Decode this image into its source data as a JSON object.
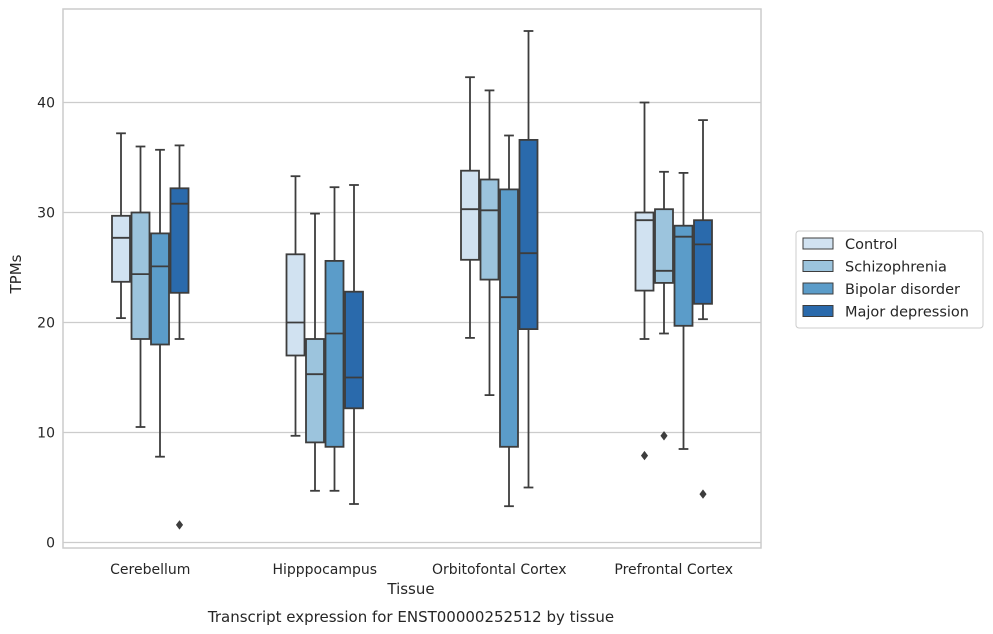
{
  "chart_data": {
    "type": "box",
    "title": "",
    "caption": "Transcript expression for ENST00000252512 by tissue",
    "xlabel": "Tissue",
    "ylabel": "TPMs",
    "ylim": [
      -0.5,
      48.5
    ],
    "yticks": [
      0,
      10,
      20,
      30,
      40
    ],
    "grid": "horizontal",
    "legend_position": "right",
    "categories": [
      "Cerebellum",
      "Hipppocampus",
      "Orbitofontal Cortex",
      "Prefrontal Cortex"
    ],
    "series": [
      {
        "name": "Control",
        "color": "#d1e2f1",
        "boxes": [
          {
            "whisker_low": 20.4,
            "q1": 23.7,
            "median": 27.7,
            "q3": 29.7,
            "whisker_high": 37.2,
            "outliers": []
          },
          {
            "whisker_low": 9.7,
            "q1": 17.0,
            "median": 20.0,
            "q3": 26.2,
            "whisker_high": 33.3,
            "outliers": []
          },
          {
            "whisker_low": 18.6,
            "q1": 25.7,
            "median": 30.3,
            "q3": 33.8,
            "whisker_high": 42.3,
            "outliers": []
          },
          {
            "whisker_low": 18.5,
            "q1": 22.9,
            "median": 29.3,
            "q3": 30.0,
            "whisker_high": 40.0,
            "outliers": [
              7.9
            ]
          }
        ]
      },
      {
        "name": "Schizophrenia",
        "color": "#9cc4dd",
        "boxes": [
          {
            "whisker_low": 10.5,
            "q1": 18.5,
            "median": 24.4,
            "q3": 30.0,
            "whisker_high": 36.0,
            "outliers": []
          },
          {
            "whisker_low": 4.7,
            "q1": 9.1,
            "median": 15.3,
            "q3": 18.5,
            "whisker_high": 29.9,
            "outliers": []
          },
          {
            "whisker_low": 13.4,
            "q1": 23.9,
            "median": 30.2,
            "q3": 33.0,
            "whisker_high": 41.1,
            "outliers": []
          },
          {
            "whisker_low": 19.0,
            "q1": 23.6,
            "median": 24.7,
            "q3": 30.3,
            "whisker_high": 33.7,
            "outliers": [
              9.7
            ]
          }
        ]
      },
      {
        "name": "Bipolar disorder",
        "color": "#5b9cc9",
        "boxes": [
          {
            "whisker_low": 7.8,
            "q1": 18.0,
            "median": 25.1,
            "q3": 28.1,
            "whisker_high": 35.7,
            "outliers": []
          },
          {
            "whisker_low": 4.7,
            "q1": 8.7,
            "median": 19.0,
            "q3": 25.6,
            "whisker_high": 32.3,
            "outliers": []
          },
          {
            "whisker_low": 3.3,
            "q1": 8.7,
            "median": 22.3,
            "q3": 32.1,
            "whisker_high": 37.0,
            "outliers": []
          },
          {
            "whisker_low": 8.5,
            "q1": 19.7,
            "median": 27.8,
            "q3": 28.8,
            "whisker_high": 33.6,
            "outliers": []
          }
        ]
      },
      {
        "name": "Major depression",
        "color": "#2a6aac",
        "boxes": [
          {
            "whisker_low": 18.5,
            "q1": 22.7,
            "median": 30.8,
            "q3": 32.2,
            "whisker_high": 36.1,
            "outliers": [
              1.6
            ]
          },
          {
            "whisker_low": 3.5,
            "q1": 12.2,
            "median": 15.0,
            "q3": 22.8,
            "whisker_high": 32.5,
            "outliers": []
          },
          {
            "whisker_low": 5.0,
            "q1": 19.4,
            "median": 26.3,
            "q3": 36.6,
            "whisker_high": 46.5,
            "outliers": []
          },
          {
            "whisker_low": 20.3,
            "q1": 21.7,
            "median": 27.1,
            "q3": 29.3,
            "whisker_high": 38.4,
            "outliers": [
              4.4
            ]
          }
        ]
      }
    ]
  }
}
